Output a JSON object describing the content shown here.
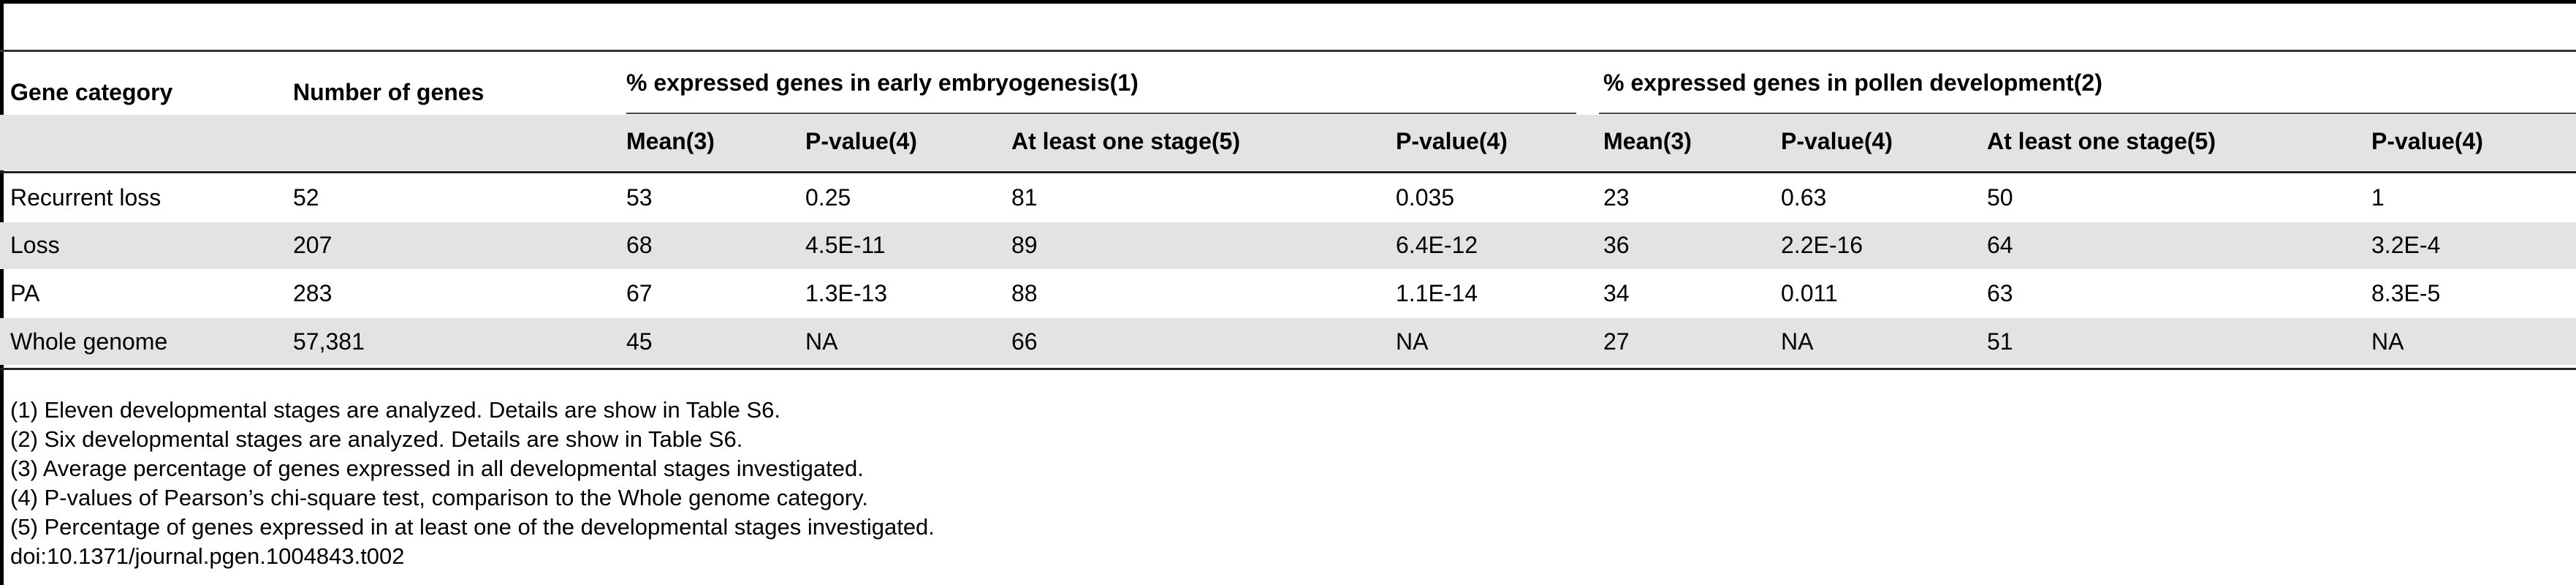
{
  "table": {
    "column_headers": {
      "gene_category": "Gene category",
      "number_of_genes": "Number of genes",
      "group_embryo": "% expressed genes in early embryogenesis(1)",
      "group_pollen": "% expressed genes in pollen development(2)"
    },
    "sub_headers": {
      "embryo": [
        "Mean(3)",
        "P-value(4)",
        "At least one stage(5)",
        "P-value(4)"
      ],
      "pollen": [
        "Mean(3)",
        "P-value(4)",
        "At least one stage(5)",
        "P-value(4)"
      ]
    },
    "rows": [
      [
        "Recurrent loss",
        "52",
        "53",
        "0.25",
        "81",
        "0.035",
        "23",
        "0.63",
        "50",
        "1"
      ],
      [
        "Loss",
        "207",
        "68",
        "4.5E-11",
        "89",
        "6.4E-12",
        "36",
        "2.2E-16",
        "64",
        "3.2E-4"
      ],
      [
        "PA",
        "283",
        "67",
        "1.3E-13",
        "88",
        "1.1E-14",
        "34",
        "0.011",
        "63",
        "8.3E-5"
      ],
      [
        "Whole genome",
        "57,381",
        "45",
        "NA",
        "66",
        "NA",
        "27",
        "NA",
        "51",
        "NA"
      ]
    ]
  },
  "footnotes": [
    "(1) Eleven developmental stages are analyzed. Details are show in Table S6.",
    "(2) Six developmental stages are analyzed. Details are show in Table S6.",
    "(3) Average percentage of genes expressed in all developmental stages investigated.",
    "(4) P-values of Pearson’s chi-square test, comparison to the Whole genome category.",
    "(5) Percentage of genes expressed in at least one of the developmental stages investigated."
  ],
  "doi": "doi:10.1371/journal.pgen.1004843.t002"
}
